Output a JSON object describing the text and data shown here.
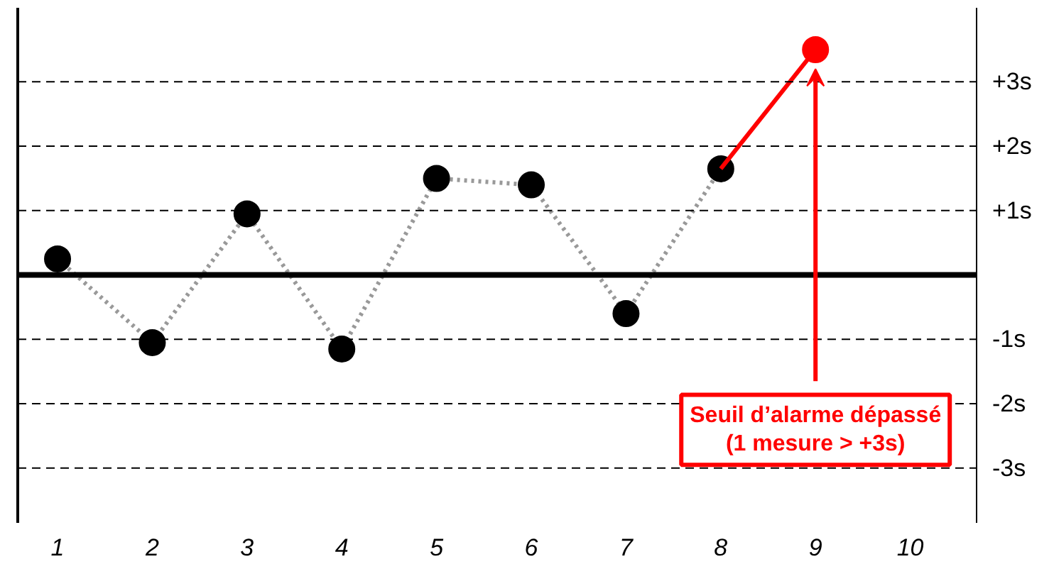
{
  "chart_data": {
    "type": "line",
    "series": [
      {
        "color": "#999999",
        "line_style": "dotted",
        "marker": "none",
        "x": [
          1,
          2,
          3,
          4,
          5,
          6,
          7,
          8
        ],
        "values": [
          0.25,
          -1.05,
          0.95,
          -1.15,
          1.5,
          1.4,
          -0.6,
          1.65
        ]
      },
      {
        "type": "scatter",
        "color": "#000000",
        "marker": "circle",
        "x": [
          1,
          2,
          3,
          4,
          5,
          6,
          7,
          8
        ],
        "values": [
          0.25,
          -1.05,
          0.95,
          -1.15,
          1.5,
          1.4,
          -0.6,
          1.65
        ]
      },
      {
        "color": "#ff0000",
        "line_style": "solid",
        "marker": "none",
        "x": [
          8,
          9
        ],
        "values": [
          1.65,
          3.5
        ]
      },
      {
        "type": "scatter",
        "color": "#ff0000",
        "marker": "circle",
        "x": [
          9
        ],
        "values": [
          3.5
        ]
      }
    ],
    "xlim": [
      0.58,
      10.7
    ],
    "ylim": [
      -3.85,
      4.15
    ],
    "xticks": [
      1,
      2,
      3,
      4,
      5,
      6,
      7,
      8,
      9,
      10
    ],
    "yticks": [
      {
        "value": 3,
        "label": "+3s"
      },
      {
        "value": 2,
        "label": "+2s"
      },
      {
        "value": 1,
        "label": "+1s"
      },
      {
        "value": -1,
        "label": "-1s"
      },
      {
        "value": -2,
        "label": "-2s"
      },
      {
        "value": -3,
        "label": "-3s"
      }
    ],
    "ref_lines": [
      {
        "axis": "y",
        "value": 0,
        "color": "#000000",
        "line_style": "solid"
      },
      {
        "axis": "y",
        "value": 3,
        "color": "#000000",
        "line_style": "dashed"
      },
      {
        "axis": "y",
        "value": 2,
        "color": "#000000",
        "line_style": "dashed"
      },
      {
        "axis": "y",
        "value": 1,
        "color": "#000000",
        "line_style": "dashed"
      },
      {
        "axis": "y",
        "value": -1,
        "color": "#000000",
        "line_style": "dashed"
      },
      {
        "axis": "y",
        "value": -2,
        "color": "#000000",
        "line_style": "dashed"
      },
      {
        "axis": "y",
        "value": -3,
        "color": "#000000",
        "line_style": "dashed"
      }
    ],
    "annotations": [
      {
        "text": "Seuil d’alarme dépassé\n(1 mesure > +3s)",
        "x": 9,
        "y": 3.2
      }
    ],
    "grid": false
  }
}
